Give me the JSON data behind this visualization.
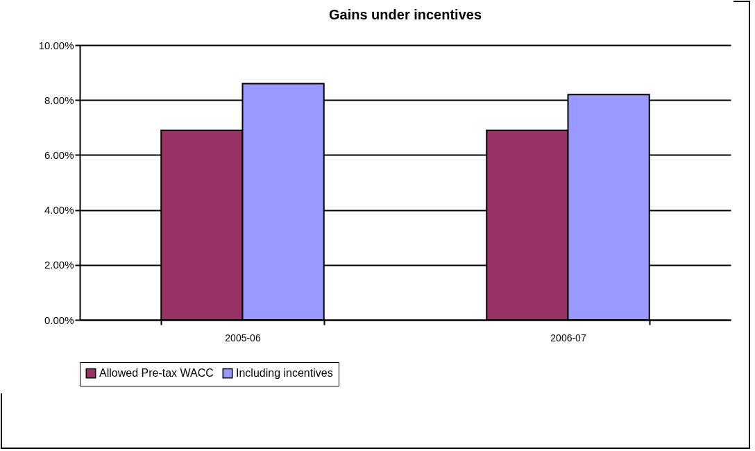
{
  "chart_data": {
    "type": "bar",
    "title": "Gains under incentives",
    "categories": [
      "2005-06",
      "2006-07"
    ],
    "series": [
      {
        "name": "Allowed Pre-tax WACC",
        "color": "#993366",
        "values": [
          6.9,
          6.9
        ]
      },
      {
        "name": "Including incentives",
        "color": "#9999ff",
        "values": [
          8.6,
          8.2
        ]
      }
    ],
    "ylim": [
      0,
      10
    ],
    "yticks": [
      {
        "value": 0,
        "label": "0.00%"
      },
      {
        "value": 2,
        "label": "2.00%"
      },
      {
        "value": 4,
        "label": "4.00%"
      },
      {
        "value": 6,
        "label": "6.00%"
      },
      {
        "value": 8,
        "label": "8.00%"
      },
      {
        "value": 10,
        "label": "10.00%"
      }
    ],
    "grid": "y",
    "legend": "bottom"
  }
}
